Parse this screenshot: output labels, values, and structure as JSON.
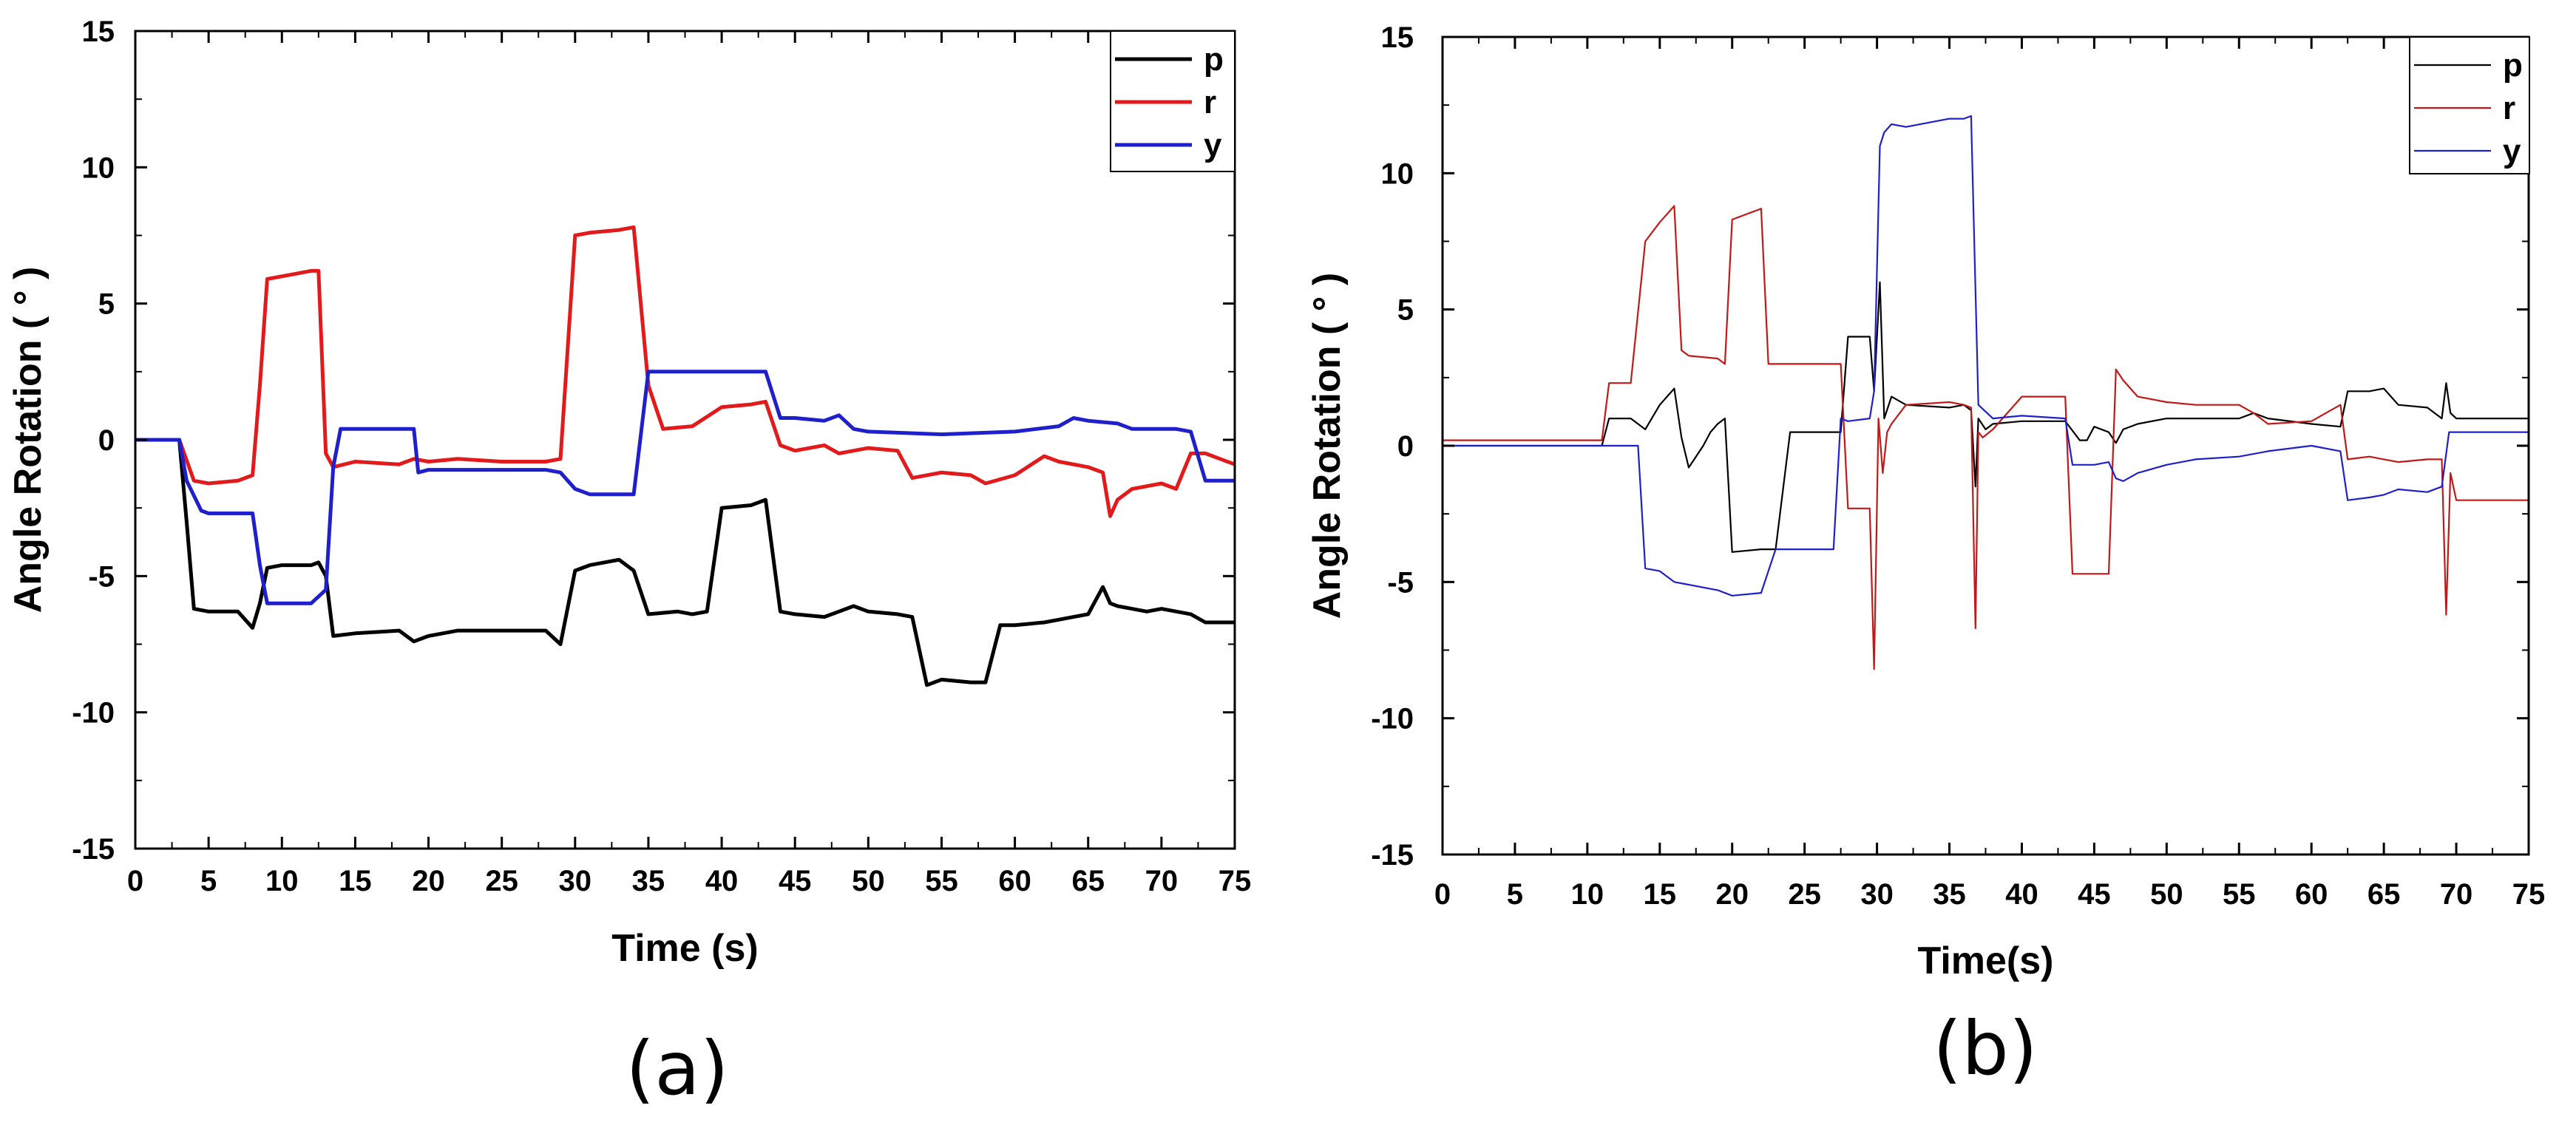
{
  "chart_data": [
    {
      "type": "line",
      "caption": "(a)",
      "xlabel": "Time (s)",
      "ylabel": "Angle Rotation ( ° )",
      "xlim": [
        0,
        75
      ],
      "ylim": [
        -15,
        15
      ],
      "xticks": [
        "0",
        "5",
        "10",
        "15",
        "20",
        "25",
        "30",
        "35",
        "40",
        "45",
        "50",
        "55",
        "60",
        "65",
        "70",
        "75"
      ],
      "yticks": [
        "-15",
        "-10",
        "-5",
        "0",
        "5",
        "10",
        "15"
      ],
      "grid": false,
      "legend_position": "top-right",
      "series": [
        {
          "name": "p",
          "color": "#000000",
          "x": [
            0,
            3,
            3.5,
            4,
            5,
            7,
            8,
            8.5,
            9,
            10,
            12,
            12.5,
            13,
            13.5,
            15,
            18,
            19,
            20,
            22,
            25,
            28,
            29,
            30,
            31,
            33,
            34,
            35,
            37,
            38,
            39,
            40,
            42,
            43,
            44,
            45,
            47,
            48,
            49,
            50,
            52,
            53,
            54,
            55,
            57,
            58,
            59,
            60,
            62,
            63,
            64,
            65,
            66,
            66.5,
            67,
            69,
            70,
            72,
            73,
            75
          ],
          "y": [
            0,
            0,
            -3,
            -6.2,
            -6.3,
            -6.3,
            -6.9,
            -6,
            -4.7,
            -4.6,
            -4.6,
            -4.5,
            -5,
            -7.2,
            -7.1,
            -7,
            -7.4,
            -7.2,
            -7,
            -7,
            -7,
            -7.5,
            -4.8,
            -4.6,
            -4.4,
            -4.8,
            -6.4,
            -6.3,
            -6.4,
            -6.3,
            -2.5,
            -2.4,
            -2.2,
            -6.3,
            -6.4,
            -6.5,
            -6.3,
            -6.1,
            -6.3,
            -6.4,
            -6.5,
            -9,
            -8.8,
            -8.9,
            -8.9,
            -6.8,
            -6.8,
            -6.7,
            -6.6,
            -6.5,
            -6.4,
            -5.4,
            -6,
            -6.1,
            -6.3,
            -6.2,
            -6.4,
            -6.7,
            -6.7
          ]
        },
        {
          "name": "r",
          "color": "#e31a1c",
          "x": [
            0,
            3,
            4,
            5,
            7,
            8,
            8.5,
            9,
            10,
            12,
            12.5,
            13,
            13.5,
            15,
            18,
            19,
            20,
            22,
            25,
            28,
            29,
            30,
            31,
            33,
            34,
            35,
            36,
            38,
            40,
            42,
            43,
            44,
            45,
            47,
            48,
            50,
            52,
            53,
            55,
            57,
            58,
            60,
            62,
            63,
            65,
            66,
            66.5,
            67,
            68,
            70,
            71,
            72,
            73,
            75
          ],
          "y": [
            0,
            0,
            -1.5,
            -1.6,
            -1.5,
            -1.3,
            2,
            5.9,
            6,
            6.2,
            6.2,
            -0.5,
            -1,
            -0.8,
            -0.9,
            -0.7,
            -0.8,
            -0.7,
            -0.8,
            -0.8,
            -0.7,
            7.5,
            7.6,
            7.7,
            7.8,
            2,
            0.4,
            0.5,
            1.2,
            1.3,
            1.4,
            -0.2,
            -0.4,
            -0.2,
            -0.5,
            -0.3,
            -0.4,
            -1.4,
            -1.2,
            -1.3,
            -1.6,
            -1.3,
            -0.6,
            -0.8,
            -1,
            -1.2,
            -2.8,
            -2.2,
            -1.8,
            -1.6,
            -1.8,
            -0.5,
            -0.5,
            -0.9
          ]
        },
        {
          "name": "y",
          "color": "#1f1fcc",
          "x": [
            0,
            3,
            3.5,
            4.5,
            5,
            8,
            8.5,
            9,
            12,
            13,
            13.5,
            14,
            15,
            17,
            19,
            19.3,
            20,
            22,
            25,
            28,
            29,
            30,
            31,
            33,
            34,
            35,
            36,
            40,
            43,
            44,
            45,
            47,
            48,
            49,
            50,
            55,
            60,
            63,
            64,
            65,
            67,
            68,
            69,
            70,
            71,
            72,
            73,
            75
          ],
          "y": [
            0,
            0,
            -1.5,
            -2.6,
            -2.7,
            -2.7,
            -4.6,
            -6,
            -6,
            -5.5,
            -1,
            0.4,
            0.4,
            0.4,
            0.4,
            -1.2,
            -1.1,
            -1.1,
            -1.1,
            -1.1,
            -1.2,
            -1.8,
            -2,
            -2,
            -2,
            2.5,
            2.5,
            2.5,
            2.5,
            0.8,
            0.8,
            0.7,
            0.9,
            0.4,
            0.3,
            0.2,
            0.3,
            0.5,
            0.8,
            0.7,
            0.6,
            0.4,
            0.4,
            0.4,
            0.4,
            0.3,
            -1.5,
            -1.5
          ]
        }
      ]
    },
    {
      "type": "line",
      "caption": "(b)",
      "xlabel": "Time(s)",
      "ylabel": "Angle Rotation ( ° )",
      "xlim": [
        0,
        75
      ],
      "ylim": [
        -15,
        15
      ],
      "xticks": [
        "0",
        "5",
        "10",
        "15",
        "20",
        "25",
        "30",
        "35",
        "40",
        "45",
        "50",
        "55",
        "60",
        "65",
        "70",
        "75"
      ],
      "yticks": [
        "-15",
        "-10",
        "-5",
        "0",
        "5",
        "10",
        "15"
      ],
      "grid": false,
      "legend_position": "top-right",
      "series": [
        {
          "name": "p",
          "color": "#000000",
          "x": [
            0,
            11,
            11.5,
            13,
            14,
            15,
            16,
            16.5,
            17,
            18,
            18.5,
            19,
            19.5,
            20,
            22,
            23,
            24,
            26,
            27.5,
            28,
            29.5,
            29.8,
            30.2,
            30.5,
            31,
            32,
            35,
            36,
            36.5,
            36.8,
            37,
            37.5,
            38,
            40,
            43,
            44,
            44.5,
            45,
            46,
            46.5,
            47,
            48,
            50,
            55,
            56,
            57,
            60,
            62,
            62.5,
            64,
            65,
            66,
            68,
            69,
            69.3,
            69.6,
            70,
            72,
            75
          ],
          "y": [
            0,
            0,
            1,
            1,
            0.6,
            1.5,
            2.1,
            0.3,
            -0.8,
            0,
            0.5,
            0.8,
            1,
            -3.9,
            -3.8,
            -3.8,
            0.5,
            0.5,
            0.5,
            4,
            4,
            2,
            6,
            1,
            1.8,
            1.5,
            1.4,
            1.5,
            1.3,
            -1.5,
            1,
            0.6,
            0.8,
            0.9,
            0.9,
            0.2,
            0.2,
            0.7,
            0.5,
            0.1,
            0.6,
            0.8,
            1,
            1,
            1.2,
            1,
            0.8,
            0.7,
            2,
            2,
            2.1,
            1.5,
            1.4,
            1,
            2.3,
            1.2,
            1,
            1,
            1
          ]
        },
        {
          "name": "r",
          "color": "#c21818",
          "x": [
            0,
            11,
            11.5,
            13,
            14,
            15,
            16,
            16.5,
            17,
            19,
            19.5,
            20,
            22,
            22.5,
            23,
            26,
            27.5,
            28,
            29.5,
            29.8,
            30.1,
            30.4,
            30.7,
            31,
            32,
            35,
            36,
            36.5,
            36.8,
            37,
            37.3,
            38,
            40,
            43,
            43.5,
            45,
            46,
            46.5,
            47,
            48,
            50,
            52,
            55,
            56,
            57,
            60,
            62,
            62.5,
            64,
            65,
            66,
            68,
            69,
            69.3,
            69.6,
            70,
            72,
            75
          ],
          "y": [
            0.2,
            0.2,
            2.3,
            2.3,
            7.5,
            8.2,
            8.8,
            3.5,
            3.3,
            3.2,
            3,
            8.3,
            8.7,
            3,
            3,
            3,
            3,
            -2.3,
            -2.3,
            -8.2,
            1,
            -1,
            0.5,
            0.8,
            1.5,
            1.6,
            1.5,
            1.4,
            -6.7,
            0.5,
            0.3,
            0.6,
            1.8,
            1.8,
            -4.7,
            -4.7,
            -4.7,
            2.8,
            2.4,
            1.8,
            1.6,
            1.5,
            1.5,
            1.2,
            0.8,
            0.9,
            1.5,
            -0.5,
            -0.4,
            -0.5,
            -0.6,
            -0.5,
            -0.5,
            -6.2,
            -1,
            -2,
            -2,
            -2
          ]
        },
        {
          "name": "y",
          "color": "#2020c8",
          "x": [
            0,
            11,
            13.5,
            14,
            15,
            16,
            17,
            19,
            20,
            22,
            23,
            24,
            27,
            27.5,
            28,
            29.5,
            29.8,
            30.2,
            30.5,
            31,
            32,
            35,
            36,
            36.5,
            37,
            38,
            40,
            43,
            43.5,
            45,
            46,
            46.5,
            47,
            48,
            50,
            52,
            55,
            56,
            57,
            60,
            62,
            62.5,
            64,
            65,
            66,
            68,
            69,
            69.5,
            70,
            72,
            75
          ],
          "y": [
            0,
            0,
            0,
            -4.5,
            -4.6,
            -5,
            -5.1,
            -5.3,
            -5.5,
            -5.4,
            -3.8,
            -3.8,
            -3.8,
            1,
            0.9,
            1,
            2,
            11,
            11.5,
            11.8,
            11.7,
            12,
            12,
            12.1,
            1.5,
            1,
            1.1,
            1,
            -0.7,
            -0.7,
            -0.6,
            -1.2,
            -1.3,
            -1,
            -0.7,
            -0.5,
            -0.4,
            -0.3,
            -0.2,
            0,
            -0.2,
            -2,
            -1.9,
            -1.8,
            -1.6,
            -1.7,
            -1.5,
            0.5,
            0.5,
            0.5,
            0.5
          ]
        }
      ]
    }
  ]
}
